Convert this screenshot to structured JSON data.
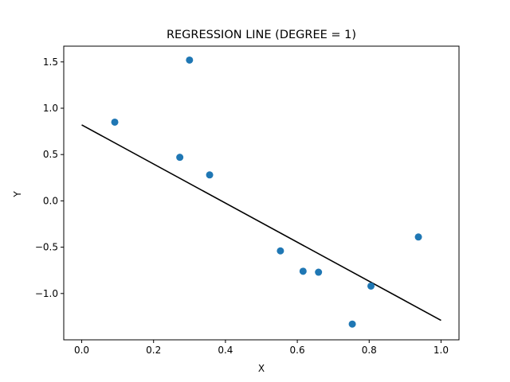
{
  "chart_data": {
    "type": "scatter",
    "title": "REGRESSION LINE (DEGREE = 1)",
    "xlabel": "X",
    "ylabel": "Y",
    "xlim": [
      -0.05,
      1.05
    ],
    "ylim": [
      -1.5,
      1.67
    ],
    "grid": false,
    "x_ticks": [
      0.0,
      0.2,
      0.4,
      0.6,
      0.8,
      1.0
    ],
    "x_tick_labels": [
      "0.0",
      "0.2",
      "0.4",
      "0.6",
      "0.8",
      "1.0"
    ],
    "y_ticks": [
      -1.0,
      -0.5,
      0.0,
      0.5,
      1.0,
      1.5
    ],
    "y_tick_labels": [
      "−1.0",
      "−0.5",
      "0.0",
      "0.5",
      "1.0",
      "1.5"
    ],
    "points": {
      "x": [
        0.092,
        0.273,
        0.3,
        0.356,
        0.553,
        0.616,
        0.659,
        0.753,
        0.805,
        0.937
      ],
      "y": [
        0.85,
        0.47,
        1.52,
        0.28,
        -0.54,
        -0.76,
        -0.77,
        -1.33,
        -0.92,
        -0.39
      ],
      "color": "#1f77b4"
    },
    "regression_line": {
      "x": [
        0.0,
        1.0
      ],
      "y": [
        0.82,
        -1.29
      ],
      "color": "#000000"
    }
  }
}
